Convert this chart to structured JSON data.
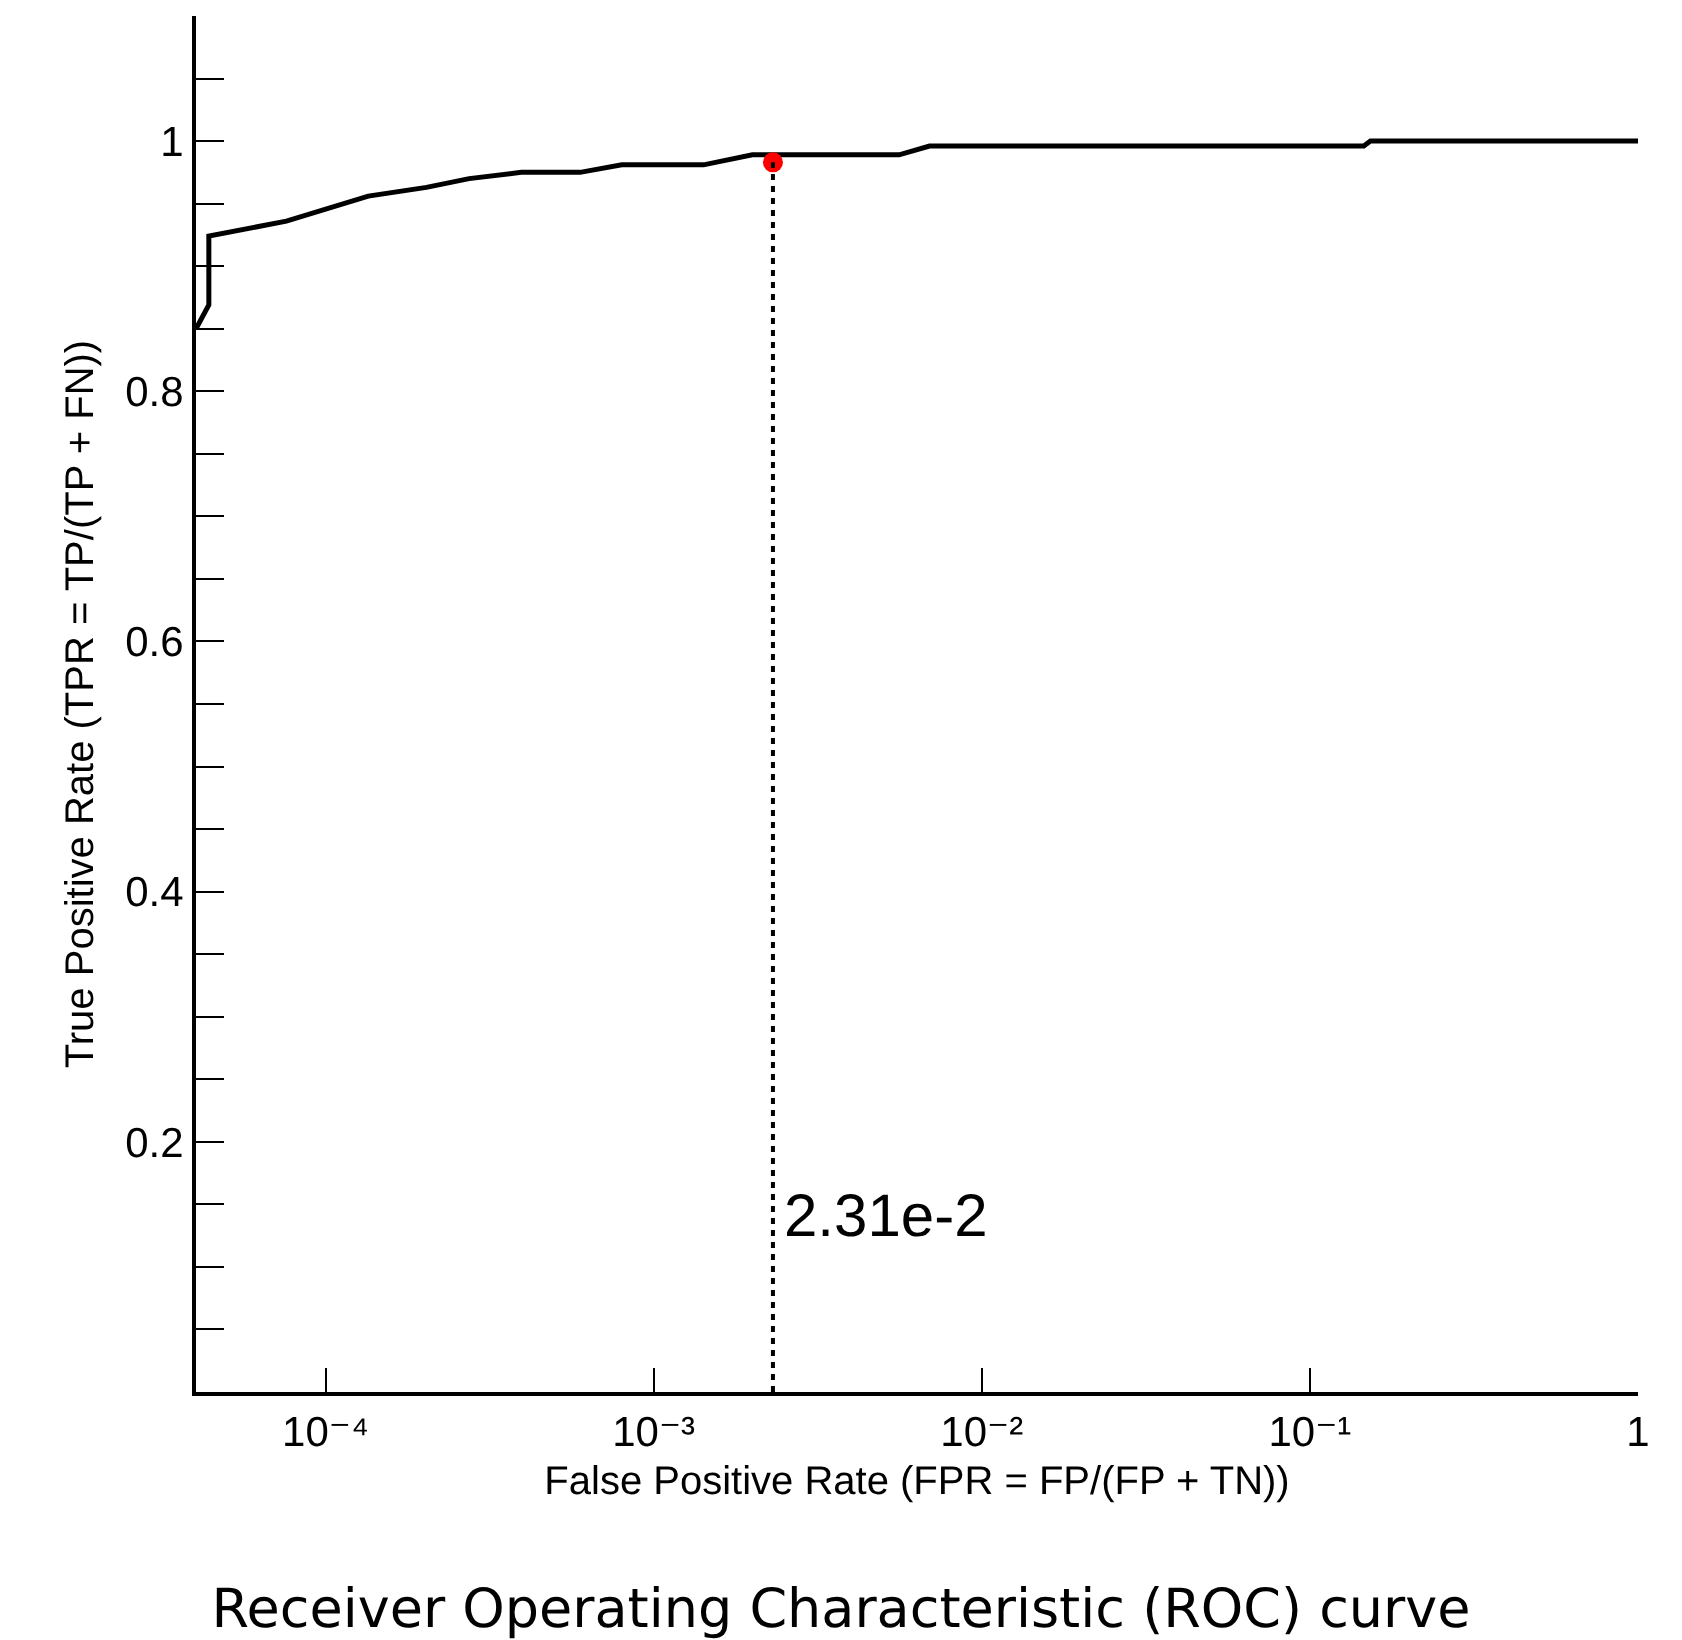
{
  "chart_data": {
    "type": "line",
    "title": "Receiver Operating Characteristic (ROC) curve",
    "xlabel": "False Positive Rate (FPR = FP/(FP + TN))",
    "ylabel": "True Positive Rate (TPR = TP/(TP + FN))",
    "log": "x",
    "grid": false,
    "xlim": [
      4.03e-05,
      1
    ],
    "ylim": [
      0,
      1.1
    ],
    "xticks": [
      {
        "value": 0.0001,
        "label": "10⁻⁴"
      },
      {
        "value": 0.001,
        "label": "10⁻³"
      },
      {
        "value": 0.01,
        "label": "10⁻²"
      },
      {
        "value": 0.1,
        "label": "10⁻¹"
      },
      1
    ],
    "yticks": [
      {
        "value": 0.05,
        "label": null
      },
      {
        "value": 0.1,
        "label": null
      },
      {
        "value": 0.15,
        "label": null
      },
      0.2,
      {
        "value": 0.25,
        "label": null
      },
      {
        "value": 0.3,
        "label": null
      },
      {
        "value": 0.35,
        "label": null
      },
      0.4,
      {
        "value": 0.45,
        "label": null
      },
      {
        "value": 0.5,
        "label": null
      },
      {
        "value": 0.55,
        "label": null
      },
      0.6,
      {
        "value": 0.65,
        "label": null
      },
      {
        "value": 0.7,
        "label": null
      },
      {
        "value": 0.75,
        "label": null
      },
      0.8,
      {
        "value": 0.85,
        "label": null
      },
      {
        "value": 0.9,
        "label": null
      },
      {
        "value": 0.95,
        "label": null
      },
      1,
      {
        "value": 1.05,
        "label": null
      }
    ],
    "series": [
      {
        "type": "line",
        "color": "#000000",
        "line_style": "solid",
        "x": [
          4.03e-05,
          4.41e-05,
          4.41e-05,
          7.6e-05,
          0.000135,
          0.000203,
          0.000274,
          0.000395,
          0.000597,
          0.0008,
          0.00142,
          0.002,
          0.0056,
          0.00693,
          0.146,
          0.153,
          1
        ],
        "values": [
          0.85,
          0.869,
          0.924,
          0.936,
          0.956,
          0.963,
          0.97,
          0.975,
          0.975,
          0.981,
          0.981,
          0.989,
          0.989,
          0.996,
          0.996,
          1,
          1
        ]
      },
      {
        "type": "scatter",
        "color": "#ff0000",
        "marker": "circle",
        "x": [
          0.00231
        ],
        "values": [
          0.983
        ]
      }
    ],
    "ref_lines": [
      {
        "axis": "x",
        "value": 0.00231,
        "label": "2.31e-2",
        "line_style": "dotted",
        "color": "#000000"
      }
    ]
  }
}
